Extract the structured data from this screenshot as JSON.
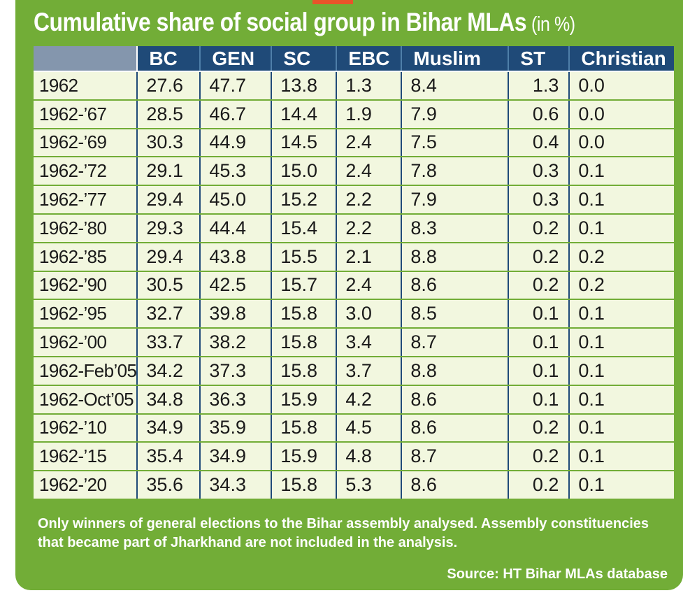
{
  "chart_data": {
    "type": "table",
    "title": "Cumulative share of social group in Bihar MLAs",
    "unit": "(in %)",
    "columns": [
      "BC",
      "GEN",
      "SC",
      "EBC",
      "Muslim",
      "ST",
      "Christian"
    ],
    "rows": [
      {
        "label": "1962",
        "values": [
          "27.6",
          "47.7",
          "13.8",
          "1.3",
          "8.4",
          "1.3",
          "0.0"
        ]
      },
      {
        "label": "1962-’67",
        "values": [
          "28.5",
          "46.7",
          "14.4",
          "1.9",
          "7.9",
          "0.6",
          "0.0"
        ]
      },
      {
        "label": "1962-’69",
        "values": [
          "30.3",
          "44.9",
          "14.5",
          "2.4",
          "7.5",
          "0.4",
          "0.0"
        ]
      },
      {
        "label": "1962-’72",
        "values": [
          "29.1",
          "45.3",
          "15.0",
          "2.4",
          "7.8",
          "0.3",
          "0.1"
        ]
      },
      {
        "label": "1962-’77",
        "values": [
          "29.4",
          "45.0",
          "15.2",
          "2.2",
          "7.9",
          "0.3",
          "0.1"
        ]
      },
      {
        "label": "1962-’80",
        "values": [
          "29.3",
          "44.4",
          "15.4",
          "2.2",
          "8.3",
          "0.2",
          "0.1"
        ]
      },
      {
        "label": "1962-’85",
        "values": [
          "29.4",
          "43.8",
          "15.5",
          "2.1",
          "8.8",
          "0.2",
          "0.2"
        ]
      },
      {
        "label": "1962-’90",
        "values": [
          "30.5",
          "42.5",
          "15.7",
          "2.4",
          "8.6",
          "0.2",
          "0.2"
        ]
      },
      {
        "label": "1962-’95",
        "values": [
          "32.7",
          "39.8",
          "15.8",
          "3.0",
          "8.5",
          "0.1",
          "0.1"
        ]
      },
      {
        "label": "1962-’00",
        "values": [
          "33.7",
          "38.2",
          "15.8",
          "3.4",
          "8.7",
          "0.1",
          "0.1"
        ]
      },
      {
        "label": "1962-Feb’05",
        "values": [
          "34.2",
          "37.3",
          "15.8",
          "3.7",
          "8.8",
          "0.1",
          "0.1"
        ]
      },
      {
        "label": "1962-Oct’05",
        "values": [
          "34.8",
          "36.3",
          "15.9",
          "4.2",
          "8.6",
          "0.1",
          "0.1"
        ]
      },
      {
        "label": "1962-’10",
        "values": [
          "34.9",
          "35.9",
          "15.8",
          "4.5",
          "8.6",
          "0.2",
          "0.1"
        ]
      },
      {
        "label": "1962-’15",
        "values": [
          "35.4",
          "34.9",
          "15.9",
          "4.8",
          "8.7",
          "0.2",
          "0.1"
        ]
      },
      {
        "label": "1962-’20",
        "values": [
          "35.6",
          "34.3",
          "15.8",
          "5.3",
          "8.6",
          "0.2",
          "0.1"
        ]
      }
    ]
  },
  "note": "Only winners of general elections to the Bihar assembly analysed. Assembly constituencies that became part of Jharkhand are not included in the analysis.",
  "source": "Source: HT Bihar MLAs database",
  "colors": {
    "panel": "#72ad37",
    "header": "#1f4a78",
    "corner": "#8496ad",
    "cell": "#f2f7df",
    "accent": "#e8542a"
  }
}
